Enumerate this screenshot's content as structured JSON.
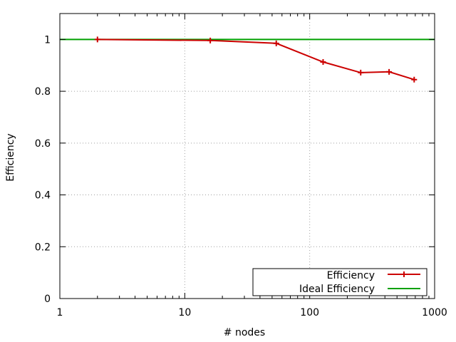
{
  "chart_data": {
    "type": "line",
    "xlabel": "# nodes",
    "ylabel": "Efficiency",
    "xscale": "log",
    "xlim": [
      1,
      1000
    ],
    "ylim": [
      0,
      1.1
    ],
    "x_ticks": [
      1,
      10,
      100,
      1000
    ],
    "x_tick_labels": [
      "1",
      "10",
      "100",
      "1000"
    ],
    "y_ticks": [
      0,
      0.2,
      0.4,
      0.6,
      0.8,
      1
    ],
    "y_tick_labels": [
      "0",
      "0.2",
      "0.4",
      "0.6",
      "0.8",
      "1"
    ],
    "grid": true,
    "legend_position": "bottom-right",
    "series": [
      {
        "name": "Efficiency",
        "color": "#cc0000",
        "marker": "plus",
        "x": [
          2,
          16,
          54,
          128,
          256,
          432,
          686
        ],
        "y": [
          1.0,
          0.996,
          0.985,
          0.913,
          0.872,
          0.875,
          0.845
        ]
      },
      {
        "name": "Ideal Efficiency",
        "color": "#00a000",
        "marker": "none",
        "x": [
          1,
          1000
        ],
        "y": [
          1,
          1
        ]
      }
    ]
  }
}
